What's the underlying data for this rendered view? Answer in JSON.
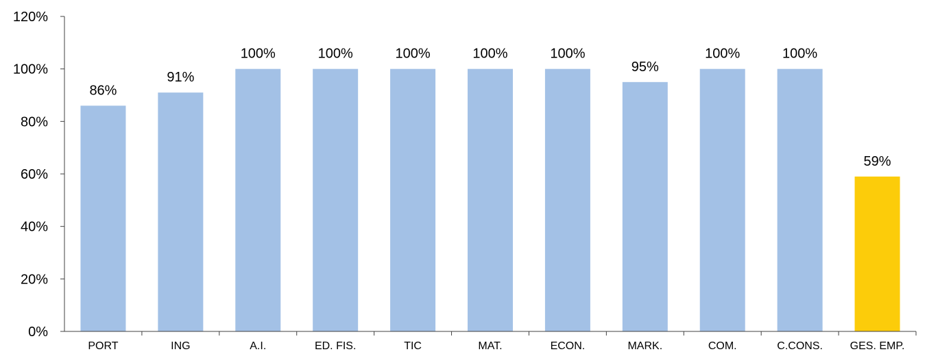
{
  "chart_data": {
    "type": "bar",
    "categories": [
      "PORT",
      "ING",
      "A.I.",
      "ED. FIS.",
      "TIC",
      "MAT.",
      "ECON.",
      "MARK.",
      "COM.",
      "C.CONS.",
      "GES. EMP."
    ],
    "values": [
      86,
      91,
      100,
      100,
      100,
      100,
      100,
      95,
      100,
      100,
      59
    ],
    "data_labels": [
      "86%",
      "91%",
      "100%",
      "100%",
      "100%",
      "100%",
      "100%",
      "95%",
      "100%",
      "100%",
      "59%"
    ],
    "colors": [
      "#a3c1e6",
      "#a3c1e6",
      "#a3c1e6",
      "#a3c1e6",
      "#a3c1e6",
      "#a3c1e6",
      "#a3c1e6",
      "#a3c1e6",
      "#a3c1e6",
      "#a3c1e6",
      "#fccc0a"
    ],
    "ylim": [
      0,
      120
    ],
    "yticks": [
      0,
      20,
      40,
      60,
      80,
      100,
      120
    ],
    "ytick_labels": [
      "0%",
      "20%",
      "40%",
      "60%",
      "80%",
      "100%",
      "120%"
    ],
    "title": "",
    "xlabel": "",
    "ylabel": "",
    "grid": false,
    "legend": "none"
  }
}
